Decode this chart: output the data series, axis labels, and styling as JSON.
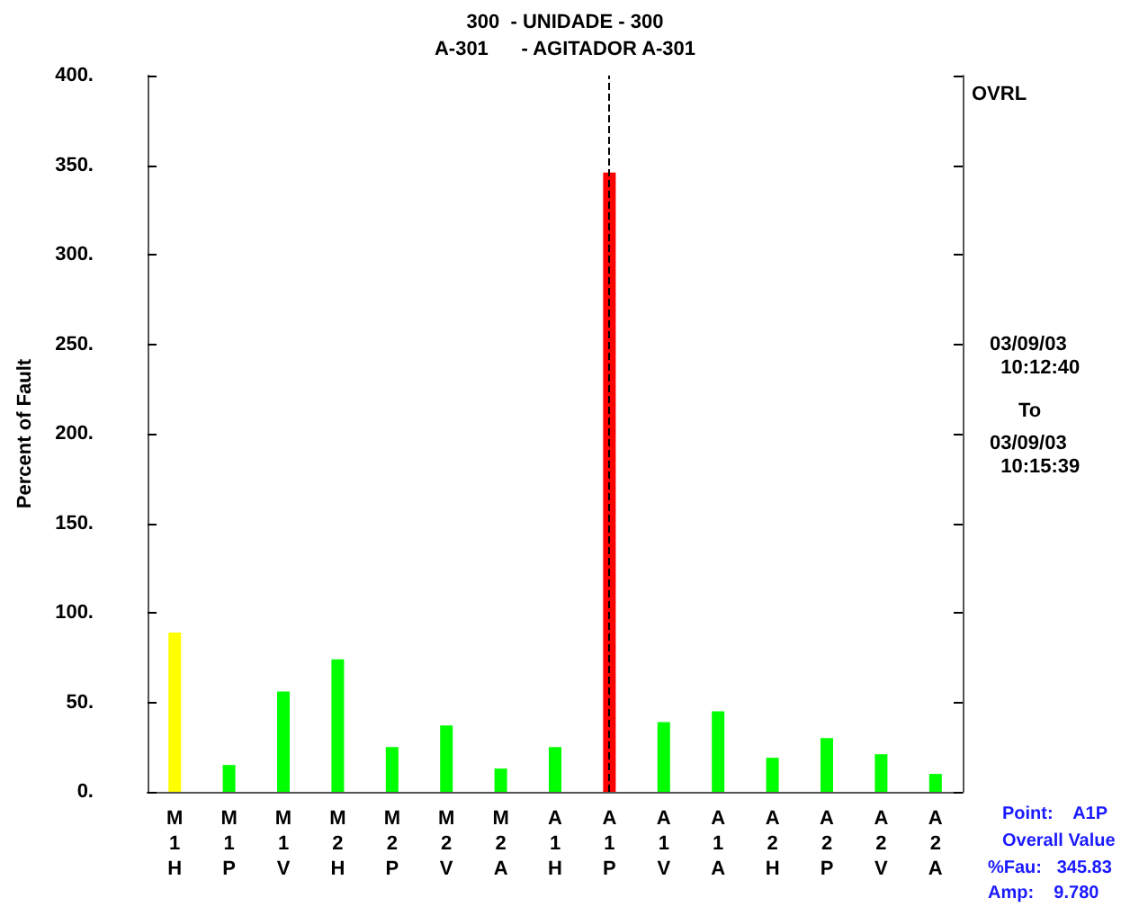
{
  "chart_data": {
    "type": "bar",
    "title": "300  - UNIDADE - 300",
    "subtitle": "A-301      - AGITADOR A-301",
    "ylabel": "Percent of Fault",
    "categories": [
      "M\n1\nH",
      "M\n1\nP",
      "M\n1\nV",
      "M\n2\nH",
      "M\n2\nP",
      "M\n2\nV",
      "M\n2\nA",
      "A\n1\nH",
      "A\n1\nP",
      "A\n1\nV",
      "A\n1\nA",
      "A\n2\nH",
      "A\n2\nP",
      "A\n2\nV",
      "A\n2\nA"
    ],
    "values": [
      89,
      15,
      56,
      74,
      25,
      37,
      13,
      25,
      345.83,
      39,
      45,
      19,
      30,
      21,
      10
    ],
    "colors": [
      "#ffff00",
      "#00ff00",
      "#00ff00",
      "#00ff00",
      "#00ff00",
      "#00ff00",
      "#00ff00",
      "#00ff00",
      "#ff0000",
      "#00ff00",
      "#00ff00",
      "#00ff00",
      "#00ff00",
      "#00ff00",
      "#00ff00"
    ],
    "ylim": [
      0,
      400
    ],
    "yticks": [
      {
        "value": 0,
        "label": "0."
      },
      {
        "value": 50,
        "label": "50."
      },
      {
        "value": 100,
        "label": "100."
      },
      {
        "value": 150,
        "label": "150."
      },
      {
        "value": 200,
        "label": "200."
      },
      {
        "value": 250,
        "label": "250."
      },
      {
        "value": 300,
        "label": "300."
      },
      {
        "value": 350,
        "label": "350."
      },
      {
        "value": 400,
        "label": "400."
      }
    ],
    "ref_lines": [
      {
        "axis": "x",
        "value": "A\n1\nP",
        "color": "#000000",
        "line_style": "dashed"
      }
    ],
    "annotations": [
      "OVRL",
      "03/09/03\n  10:12:40",
      "To",
      "03/09/03\n  10:15:39",
      "Point:    A1P",
      "Overall Value",
      "%Fau:   345.83",
      "Amp:    9.780"
    ],
    "grid": false
  }
}
